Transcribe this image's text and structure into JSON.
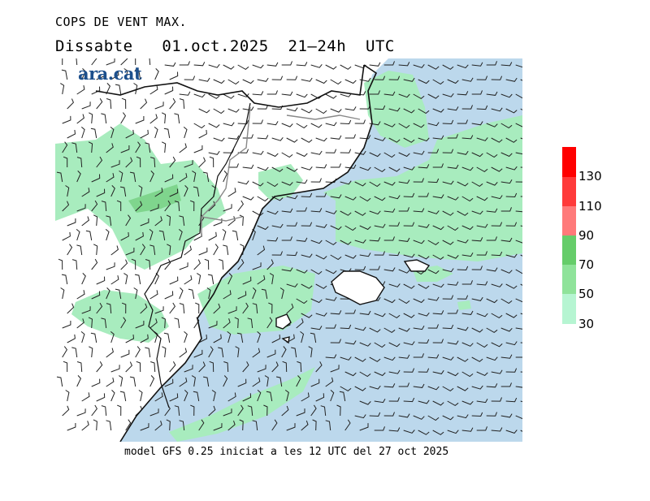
{
  "header": {
    "title": "COPS DE VENT MAX.",
    "date_line": "Dissabte   01.oct.2025  21–24h  UTC"
  },
  "logo": {
    "text": "ara.cat"
  },
  "footer": {
    "model_line": "model GFS 0.25 iniciat a les 12 UTC del 27 oct 2025"
  },
  "legend": {
    "unit_levels": [
      "30",
      "50",
      "70",
      "90",
      "110",
      "130"
    ],
    "colors": {
      "30-50": "#b6f5d2",
      "50-70": "#8fe39a",
      "70-90": "#66cd6a",
      "90-110": "#ff7a7a",
      "110-130": "#ff3a3a",
      "130+": "#ff0000"
    }
  },
  "map_colors": {
    "sea": "#bcd8ec",
    "land": "#ffffff",
    "wind_30_50": "#a8ecbe",
    "wind_50_70": "#7fd58d"
  }
}
